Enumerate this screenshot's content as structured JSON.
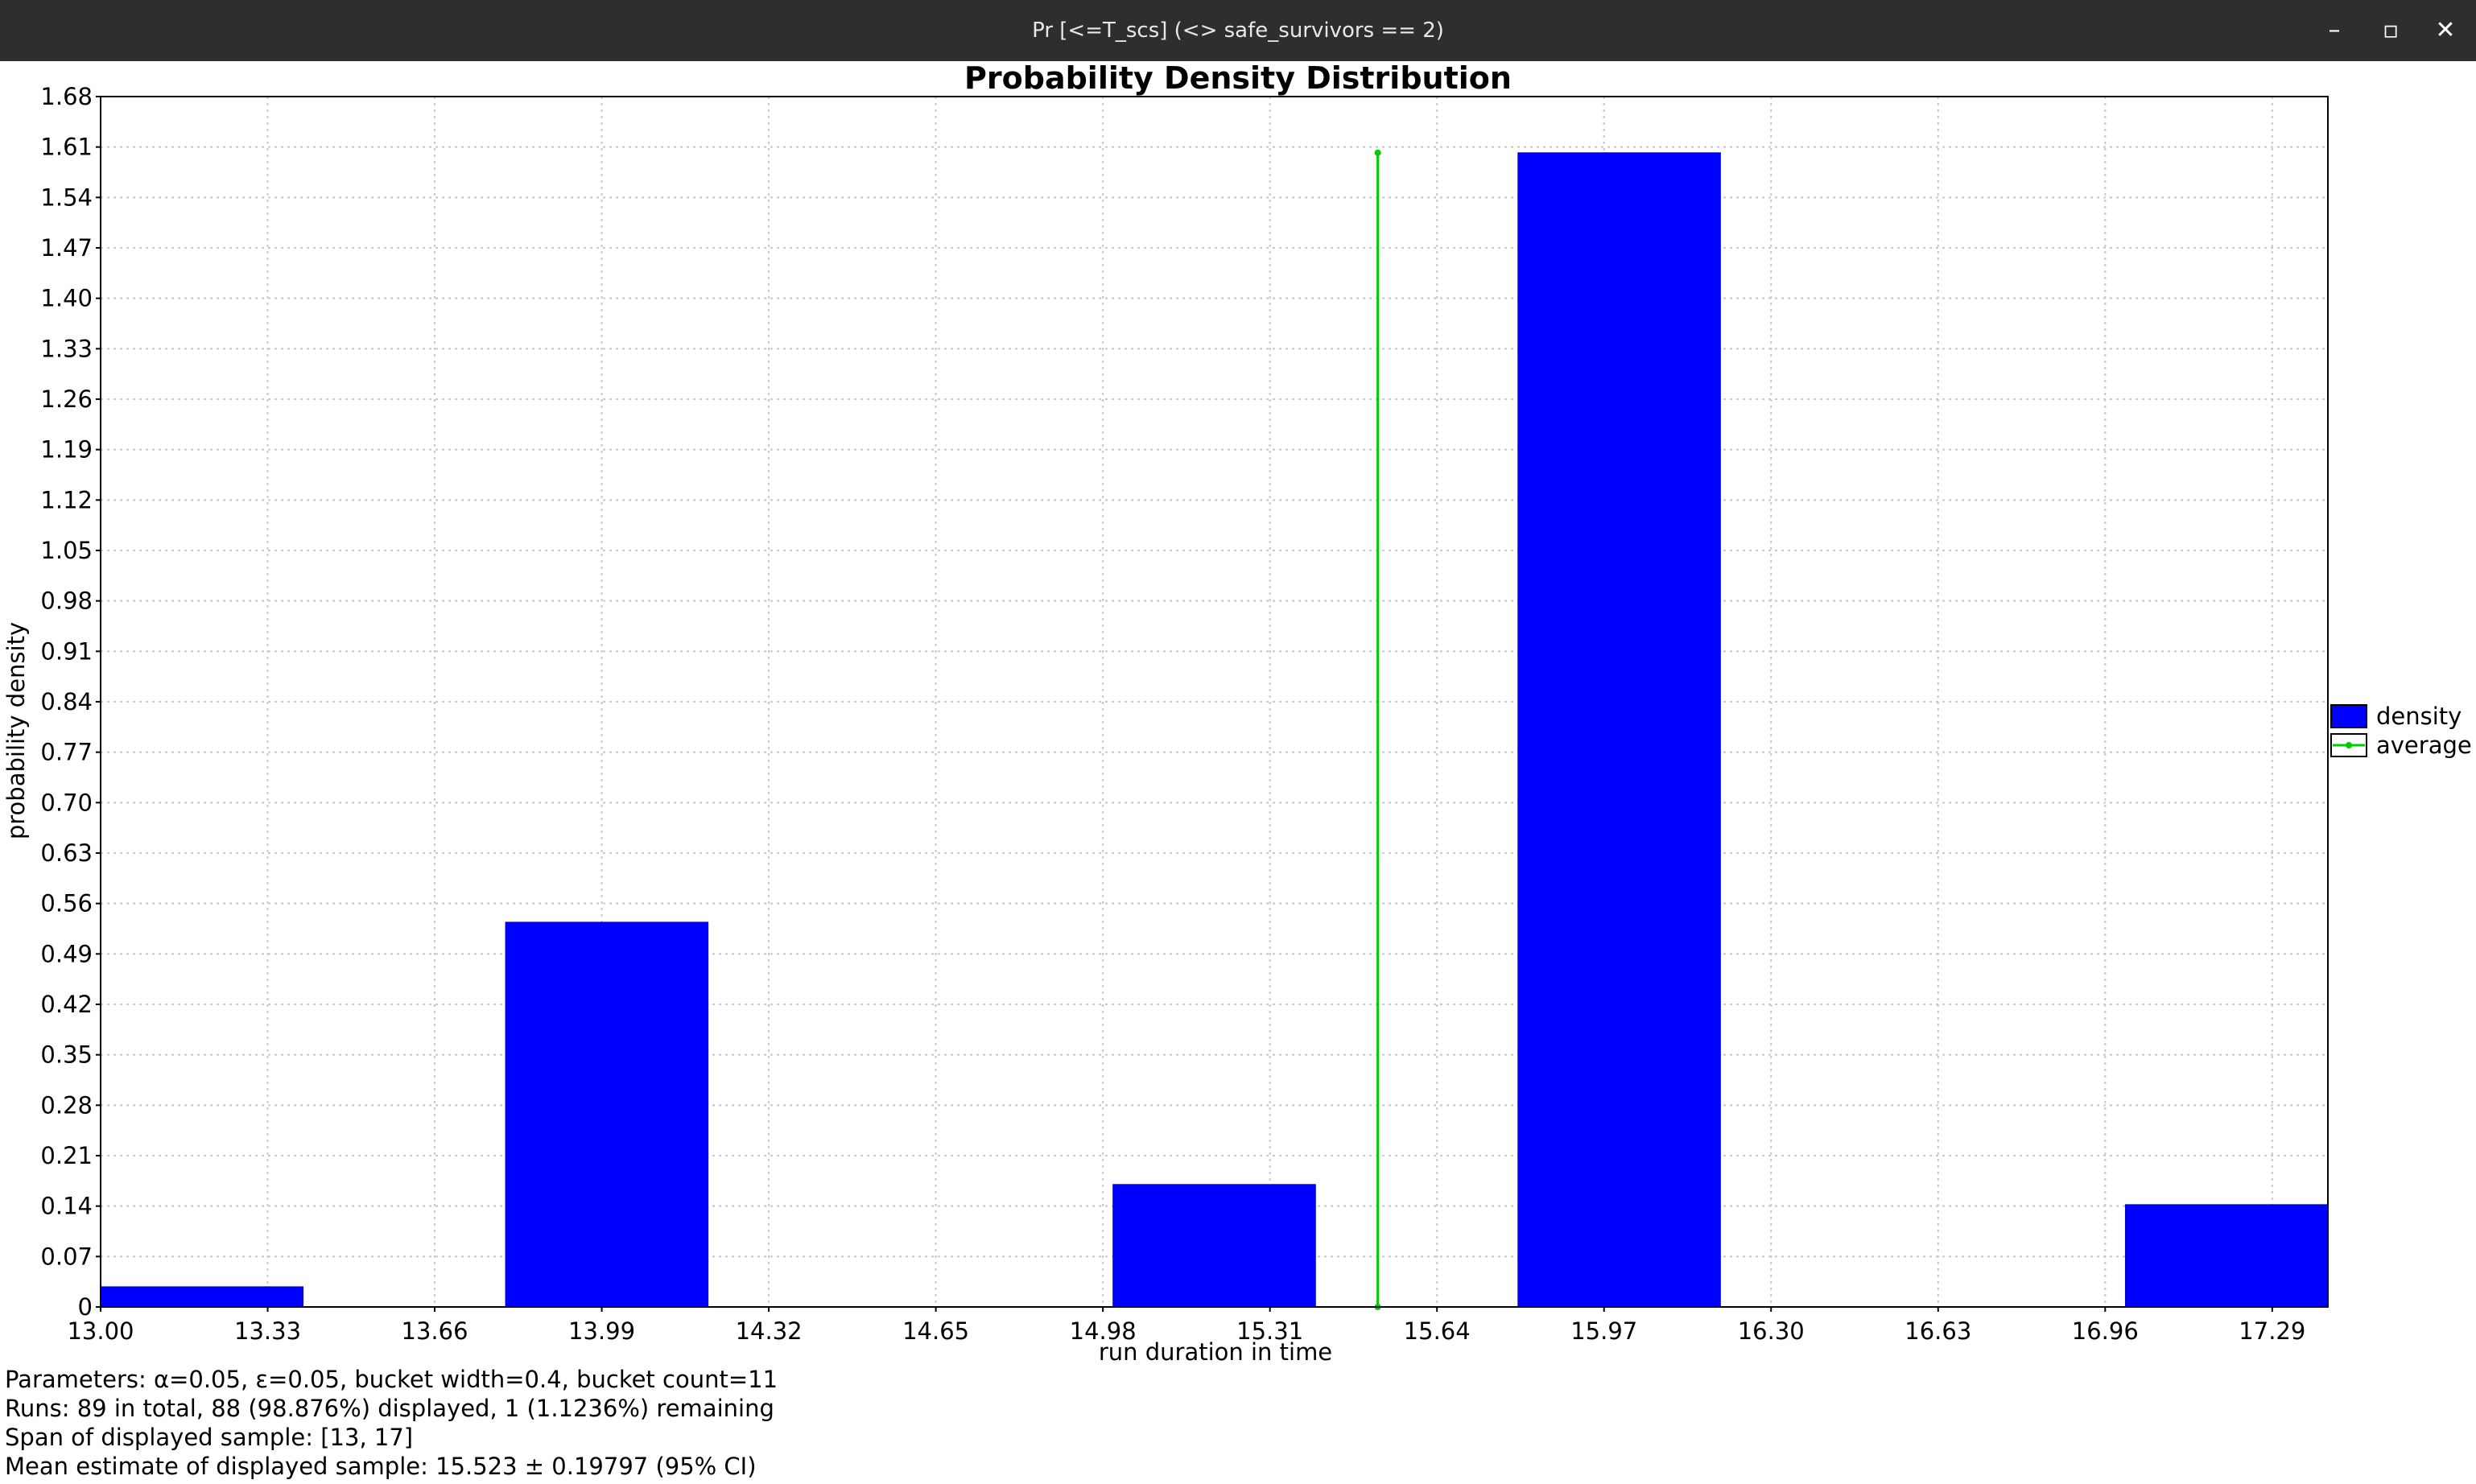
{
  "window": {
    "title": "Pr [<=T_scs] (<> safe_survivors == 2)",
    "minimize_label": "–",
    "maximize_label": "▫",
    "close_label": "✕"
  },
  "chart_data": {
    "type": "bar",
    "title": "Probability Density Distribution",
    "xlabel": "run duration in time",
    "ylabel": "probability density",
    "xlim": [
      13.0,
      17.4
    ],
    "ylim": [
      0,
      1.68
    ],
    "x_ticks": [
      "13.00",
      "13.33",
      "13.66",
      "13.99",
      "14.32",
      "14.65",
      "14.98",
      "15.31",
      "15.64",
      "15.97",
      "16.30",
      "16.63",
      "16.96",
      "17.29"
    ],
    "y_ticks": [
      "0",
      "0.07",
      "0.14",
      "0.21",
      "0.28",
      "0.35",
      "0.42",
      "0.49",
      "0.56",
      "0.63",
      "0.70",
      "0.77",
      "0.84",
      "0.91",
      "0.98",
      "1.05",
      "1.12",
      "1.19",
      "1.26",
      "1.33",
      "1.40",
      "1.47",
      "1.54",
      "1.61",
      "1.68"
    ],
    "grid": true,
    "legend_position": "right",
    "series": [
      {
        "name": "density",
        "color": "#0000ff",
        "bins": [
          {
            "start": 13.0,
            "end": 13.4,
            "value": 0.028
          },
          {
            "start": 13.8,
            "end": 14.2,
            "value": 0.534
          },
          {
            "start": 15.0,
            "end": 15.4,
            "value": 0.17
          },
          {
            "start": 15.8,
            "end": 16.2,
            "value": 1.602
          },
          {
            "start": 17.0,
            "end": 17.4,
            "value": 0.142
          }
        ]
      },
      {
        "name": "average",
        "color": "#00cc00",
        "x": 15.523,
        "y_top": 1.602
      }
    ]
  },
  "info": {
    "line1": "Parameters: α=0.05, ε=0.05, bucket width=0.4, bucket count=11",
    "line2": "Runs: 89 in total, 88 (98.876%) displayed, 1 (1.1236%) remaining",
    "line3": "Span of displayed sample: [13, 17]",
    "line4": "Mean estimate of displayed sample: 15.523 ± 0.19797 (95% CI)"
  }
}
